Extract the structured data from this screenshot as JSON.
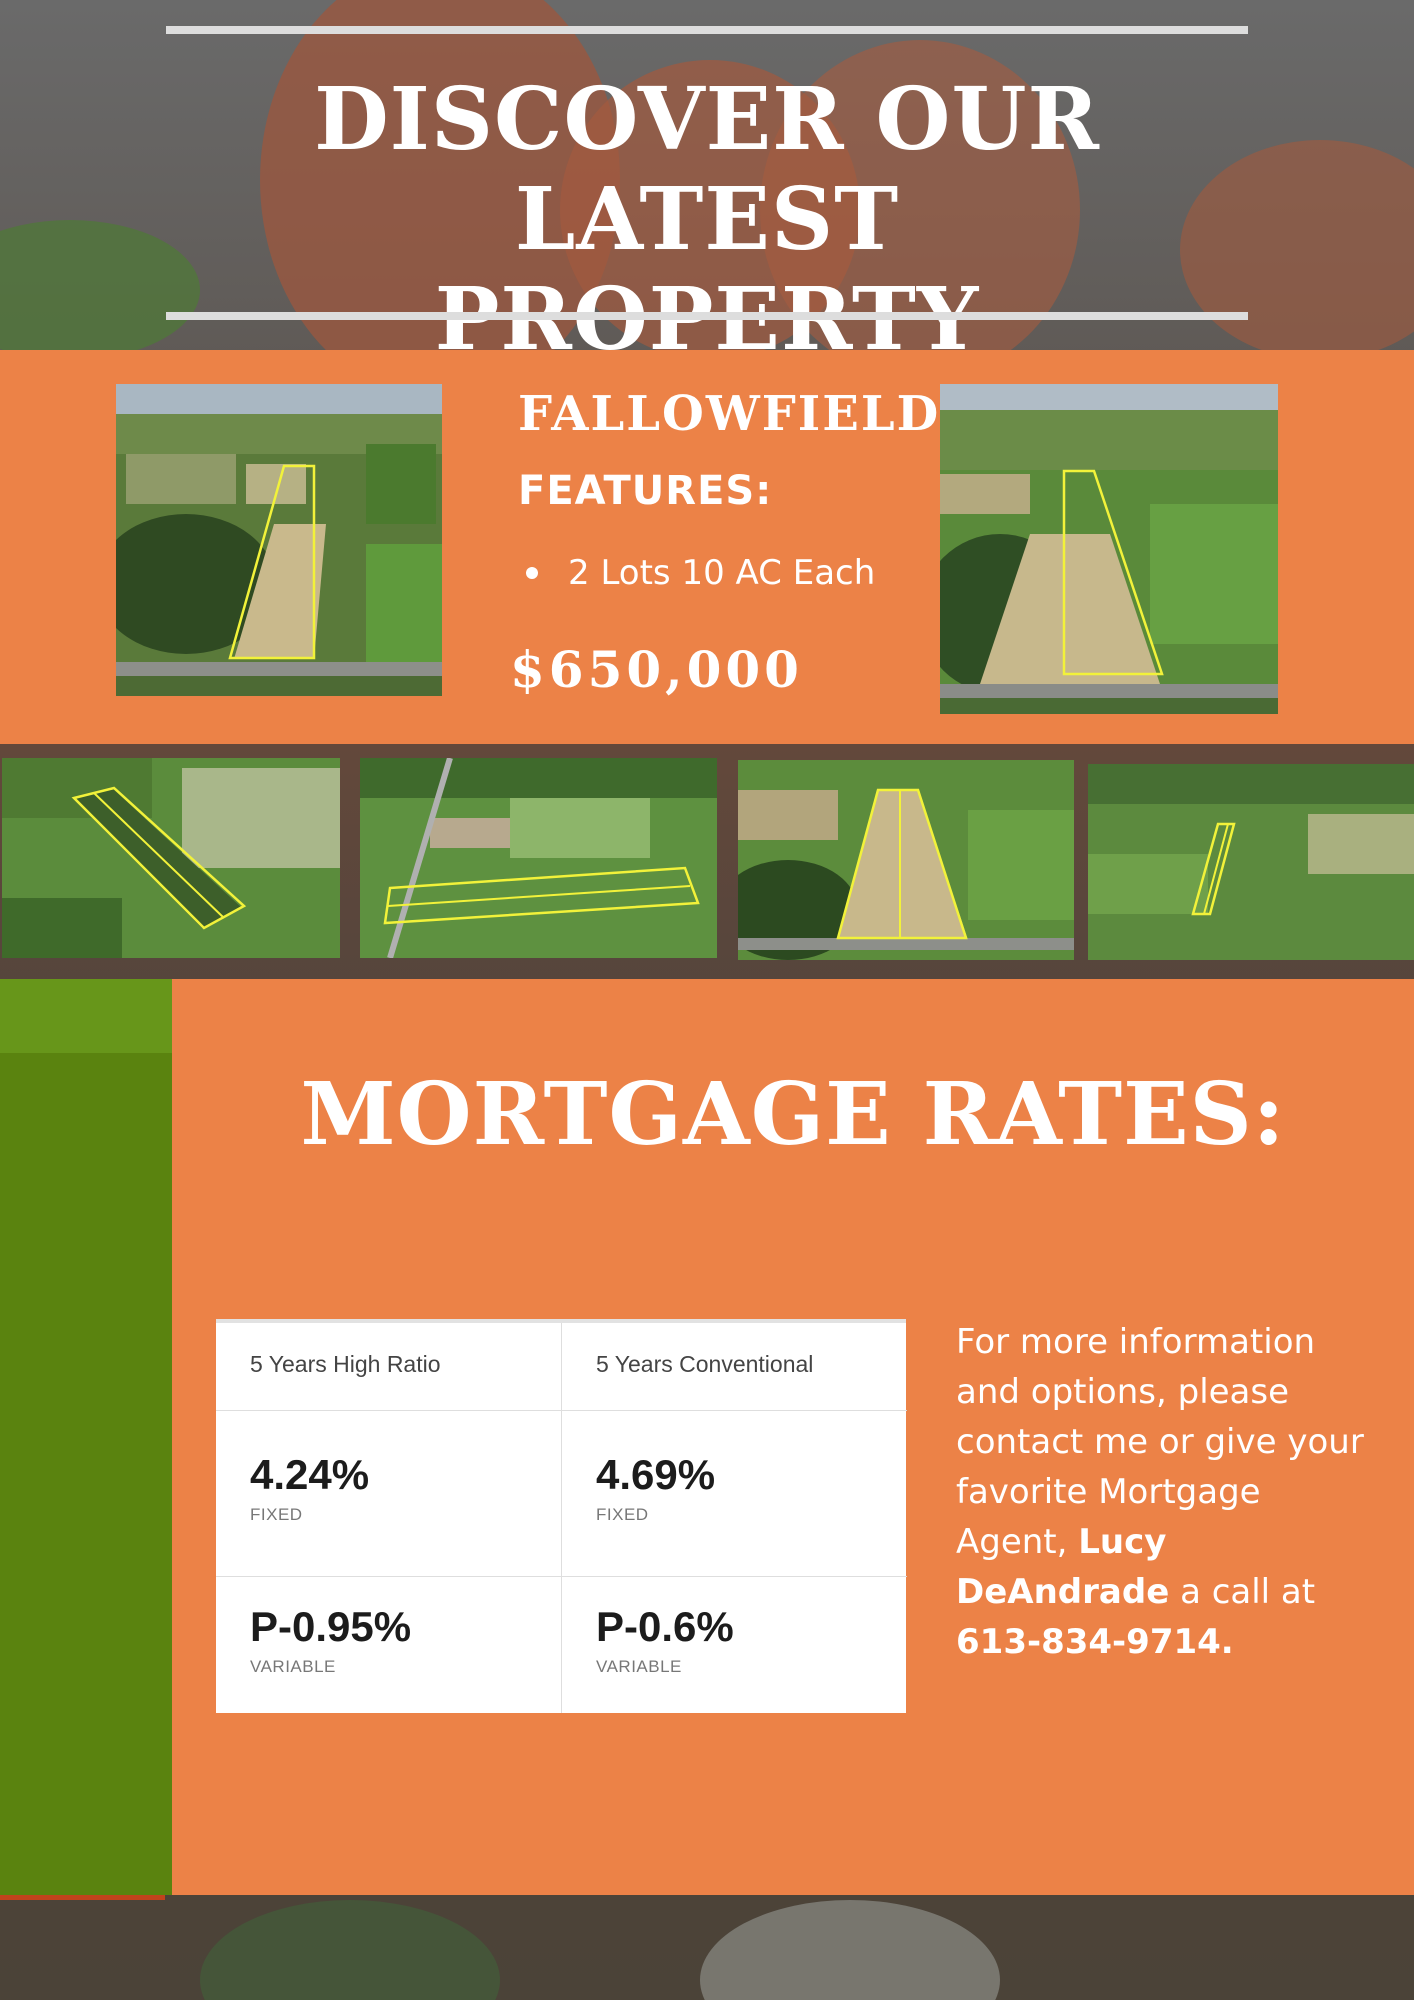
{
  "header": {
    "headline_line1": "DISCOVER OUR LATEST",
    "headline_line2": "PROPERTY SELECTIONS"
  },
  "listing": {
    "name": "FALLOWFIELD",
    "features_heading": "FEATURES:",
    "features": [
      "2 Lots 10 AC Each"
    ],
    "price": "$650,000"
  },
  "mortgage": {
    "title": "MORTGAGE RATES:",
    "columns": [
      {
        "heading": "5 Years High Ratio",
        "fixed_rate": "4.24%",
        "fixed_label": "FIXED",
        "variable_rate": "P-0.95%",
        "variable_label": "VARIABLE"
      },
      {
        "heading": "5 Years Conventional",
        "fixed_rate": "4.69%",
        "fixed_label": "FIXED",
        "variable_rate": "P-0.6%",
        "variable_label": "VARIABLE"
      }
    ],
    "contact": {
      "text_before": "For more information and options, please contact me or give your favorite Mortgage Agent,",
      "agent_name": "Lucy DeAndrade",
      "text_middle": "a call at",
      "phone": "613-834-9714."
    }
  },
  "colors": {
    "accent_orange": "#ec8247",
    "green_bar": "#5a830f",
    "lot_outline": "#f2f23a",
    "text_white": "#ffffff"
  }
}
